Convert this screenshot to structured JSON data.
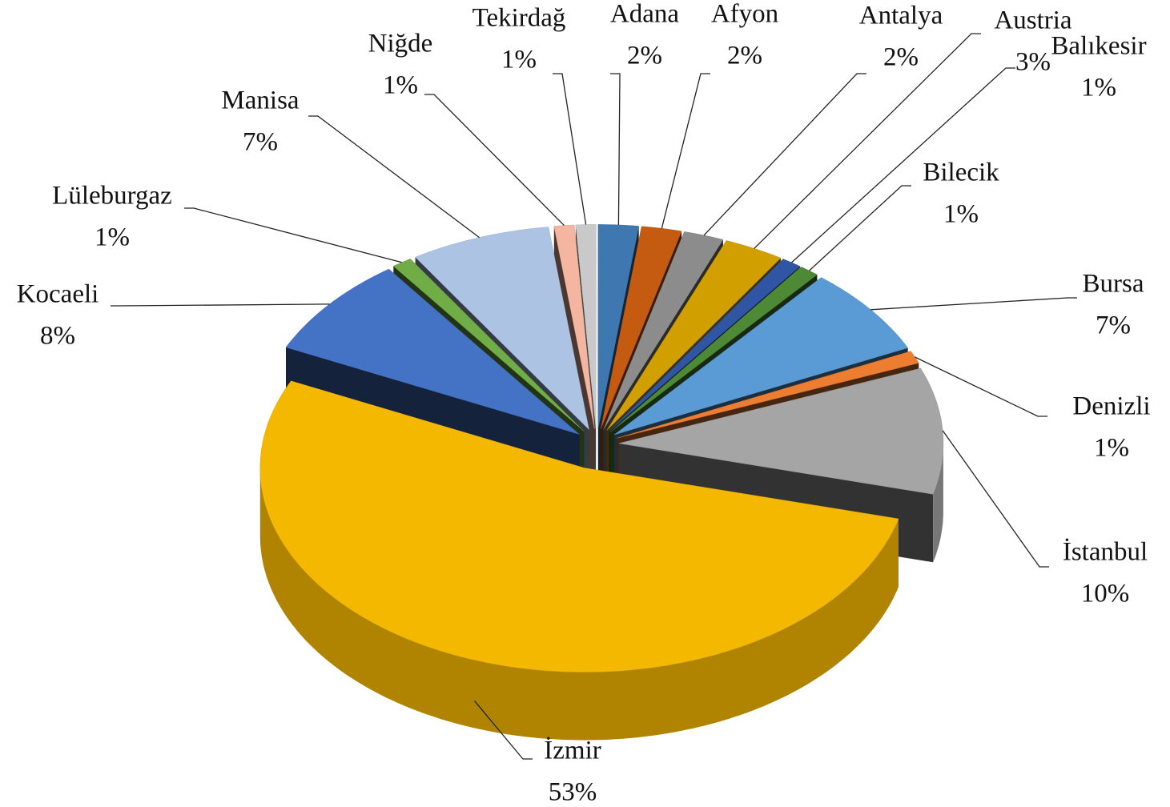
{
  "chart_data": {
    "type": "pie3d",
    "categories": [
      "Adana",
      "Afyon",
      "Antalya",
      "Austria",
      "Balıkesir",
      "Bilecik",
      "Bursa",
      "Denizli",
      "İstanbul",
      "İzmir",
      "Kocaeli",
      "Lüleburgaz",
      "Manisa",
      "Niğde",
      "Tekirdağ"
    ],
    "values": [
      2,
      2,
      2,
      3,
      1,
      1,
      7,
      1,
      10,
      53,
      8,
      1,
      7,
      1,
      1
    ],
    "value_labels": [
      "2%",
      "2%",
      "2%",
      "3%",
      "1%",
      "1%",
      "7%",
      "1%",
      "10%",
      "53%",
      "8%",
      "1%",
      "7%",
      "1%",
      "1%"
    ],
    "colors": [
      "#3f78b0",
      "#c55a11",
      "#8c8c8c",
      "#d19f00",
      "#2f55a4",
      "#4e8a35",
      "#5b9bd5",
      "#ed7d31",
      "#a5a5a5",
      "#f5b800",
      "#4472c4",
      "#70ad47",
      "#adc3e3",
      "#f4b6a0",
      "#c9c9c9"
    ]
  }
}
